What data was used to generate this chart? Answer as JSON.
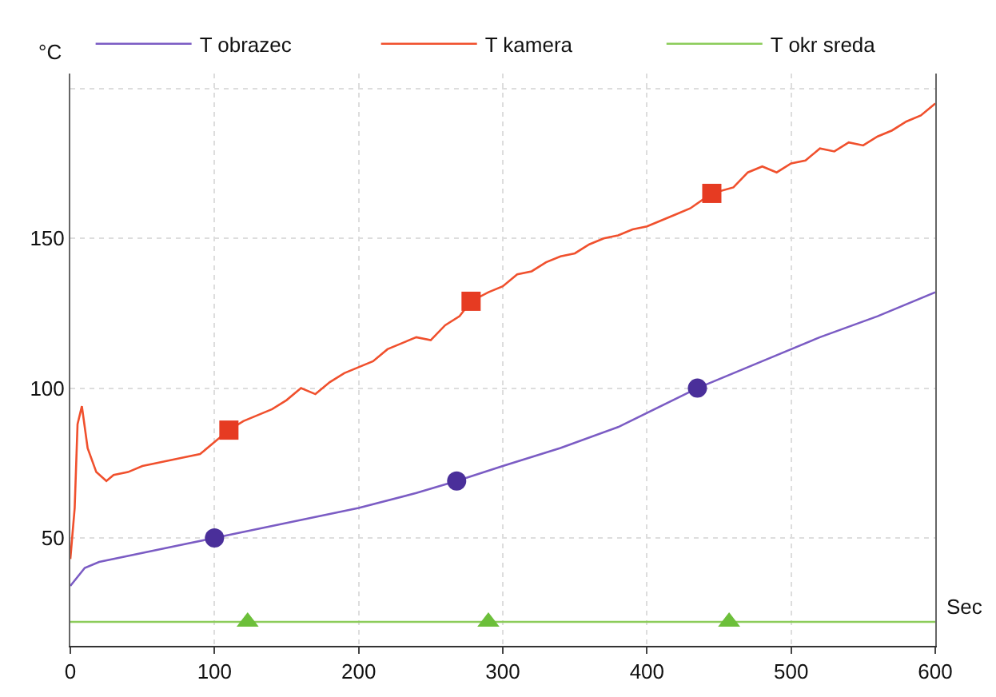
{
  "chart_data": {
    "type": "line",
    "xlabel": "Sec",
    "ylabel": "°C",
    "xlim": [
      0,
      600
    ],
    "xticks": [
      0,
      100,
      200,
      300,
      400,
      500,
      600
    ],
    "ylim": [
      14,
      205
    ],
    "yticks": [
      50,
      100,
      150,
      {
        "value": 200,
        "label": null
      }
    ],
    "grid": true,
    "legend": "top",
    "line_style": "solid",
    "series": [
      {
        "name": "T obrazec",
        "color": "#7b5cc4",
        "marker": "none",
        "x": [
          0,
          5,
          10,
          20,
          40,
          60,
          80,
          100,
          130,
          160,
          200,
          240,
          268,
          300,
          340,
          380,
          435,
          480,
          520,
          560,
          600
        ],
        "values": [
          34,
          37,
          40,
          42,
          44,
          46,
          48,
          50,
          53,
          56,
          60,
          65,
          69,
          74,
          80,
          87,
          100,
          109,
          117,
          124,
          132
        ]
      },
      {
        "name": "T kamera",
        "color": "#f0502d",
        "marker": "none",
        "x": [
          0,
          3,
          5,
          8,
          12,
          18,
          25,
          30,
          40,
          50,
          60,
          70,
          80,
          90,
          100,
          110,
          120,
          130,
          140,
          150,
          160,
          170,
          180,
          190,
          200,
          210,
          220,
          230,
          240,
          250,
          260,
          270,
          278,
          290,
          300,
          310,
          320,
          330,
          340,
          350,
          360,
          370,
          380,
          390,
          400,
          410,
          420,
          430,
          445,
          460,
          470,
          480,
          490,
          500,
          510,
          520,
          530,
          540,
          550,
          560,
          570,
          580,
          590,
          600
        ],
        "values": [
          43,
          60,
          88,
          94,
          80,
          72,
          69,
          71,
          72,
          74,
          75,
          76,
          77,
          78,
          82,
          86,
          89,
          91,
          93,
          96,
          100,
          98,
          102,
          105,
          107,
          109,
          113,
          115,
          117,
          116,
          121,
          124,
          129,
          132,
          134,
          138,
          139,
          142,
          144,
          145,
          148,
          150,
          151,
          153,
          154,
          156,
          158,
          160,
          165,
          167,
          172,
          174,
          172,
          175,
          176,
          180,
          179,
          182,
          181,
          184,
          186,
          189,
          191,
          195
        ]
      },
      {
        "name": "T okr sreda",
        "color": "#8ccc5a",
        "marker": "none",
        "x": [
          0,
          100,
          200,
          300,
          400,
          500,
          600
        ],
        "values": [
          22,
          22,
          22,
          22,
          22,
          22,
          22
        ]
      },
      {
        "type": "scatter",
        "color": "#4a2f9a",
        "marker": "circle",
        "x": [
          100,
          268,
          435
        ],
        "values": [
          50,
          69,
          100
        ]
      },
      {
        "type": "scatter",
        "color": "#e63b22",
        "marker": "square",
        "x": [
          110,
          278,
          445
        ],
        "values": [
          86,
          129,
          165
        ]
      },
      {
        "type": "scatter",
        "color": "#6cbf3a",
        "marker": "triangle",
        "x": [
          123,
          290,
          457
        ],
        "values": [
          22,
          22,
          22
        ]
      }
    ]
  }
}
